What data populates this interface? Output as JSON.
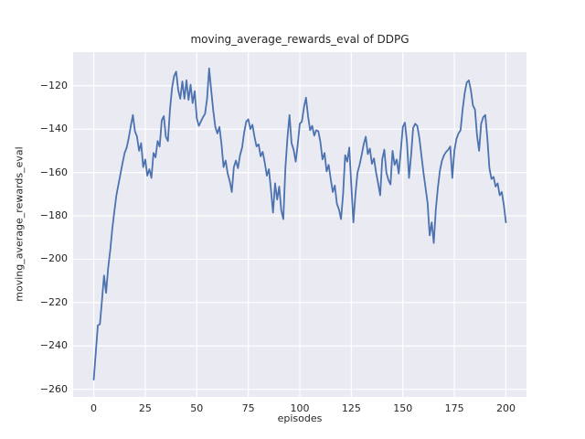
{
  "figure": {
    "title": "moving_average_rewards_eval of DDPG",
    "xlabel": "episodes",
    "ylabel": "moving_average_rewards_eval"
  },
  "chart_data": {
    "type": "line",
    "title": "moving_average_rewards_eval of DDPG",
    "xlabel": "episodes",
    "ylabel": "moving_average_rewards_eval",
    "legend": "none",
    "grid": true,
    "style": "seaborn-darkgrid",
    "plot_bg_color": "#eaeaf2",
    "grid_color": "#ffffff",
    "line_color": "#4c72b0",
    "text_color": "#262626",
    "xlim": [
      -10,
      210
    ],
    "ylim": [
      -263.5,
      -104.5
    ],
    "xticks": [
      0,
      25,
      50,
      75,
      100,
      125,
      150,
      175,
      200
    ],
    "xtick_labels": [
      "0",
      "25",
      "50",
      "75",
      "100",
      "125",
      "150",
      "175",
      "200"
    ],
    "yticks": [
      -260,
      -240,
      -220,
      -200,
      -180,
      -160,
      -140,
      -120
    ],
    "ytick_labels": [
      "−260",
      "−240",
      "−220",
      "−200",
      "−180",
      "−160",
      "−140",
      "−120"
    ],
    "series": [
      {
        "name": "moving_average_rewards_eval",
        "x_start": 0,
        "x_step": 1,
        "values": [
          -255.5,
          -243,
          -230.5,
          -230,
          -219,
          -207.5,
          -215.5,
          -204,
          -196,
          -186,
          -178,
          -170.5,
          -165.5,
          -160.5,
          -155.5,
          -151,
          -148.5,
          -144,
          -138.5,
          -133.5,
          -141,
          -143.5,
          -150,
          -146.5,
          -157.5,
          -154,
          -161.5,
          -158.5,
          -162.5,
          -151,
          -153,
          -145.5,
          -148,
          -136,
          -134,
          -143.5,
          -145.5,
          -131,
          -121,
          -115.5,
          -113.5,
          -122,
          -126,
          -118,
          -126,
          -117.5,
          -126.5,
          -119.5,
          -128,
          -122.5,
          -135,
          -138.5,
          -136.5,
          -134.5,
          -133,
          -126,
          -112,
          -122,
          -131.5,
          -139,
          -142,
          -139,
          -147,
          -157.5,
          -154.5,
          -160.5,
          -164,
          -169,
          -157.5,
          -154.5,
          -158,
          -152,
          -148.5,
          -141.5,
          -136.5,
          -135.5,
          -140,
          -138,
          -143.5,
          -148,
          -147,
          -152.5,
          -150.5,
          -155.5,
          -161.5,
          -158.5,
          -168,
          -178.5,
          -165,
          -172.5,
          -166.5,
          -177.5,
          -181.5,
          -158,
          -144,
          -133.5,
          -146.5,
          -149.5,
          -155,
          -147,
          -137.5,
          -136.5,
          -130,
          -125.5,
          -134,
          -140.5,
          -138.5,
          -143,
          -140.5,
          -141,
          -146,
          -154,
          -151,
          -159.5,
          -156.5,
          -163,
          -169,
          -166,
          -174.5,
          -177,
          -181.5,
          -170,
          -152,
          -155,
          -148.5,
          -166,
          -183,
          -170,
          -160,
          -156.5,
          -152,
          -147,
          -143.5,
          -151.5,
          -149,
          -156,
          -153.5,
          -160,
          -165,
          -170.5,
          -154,
          -149.5,
          -160,
          -163.5,
          -165.5,
          -150,
          -156.5,
          -154,
          -160.5,
          -150,
          -139,
          -137,
          -146,
          -162.5,
          -152,
          -139.5,
          -137.5,
          -138.5,
          -144,
          -152,
          -160,
          -167,
          -174,
          -189,
          -183,
          -192.5,
          -177,
          -167,
          -159,
          -154.5,
          -152,
          -150.5,
          -149.5,
          -148,
          -162.5,
          -150,
          -144.5,
          -142,
          -140.5,
          -131,
          -123.5,
          -118.5,
          -117.5,
          -122,
          -129,
          -131,
          -143,
          -150,
          -137.5,
          -134.5,
          -133.5,
          -144,
          -158,
          -163,
          -162,
          -166.5,
          -165,
          -170.5,
          -169,
          -175,
          -183
        ]
      }
    ]
  }
}
